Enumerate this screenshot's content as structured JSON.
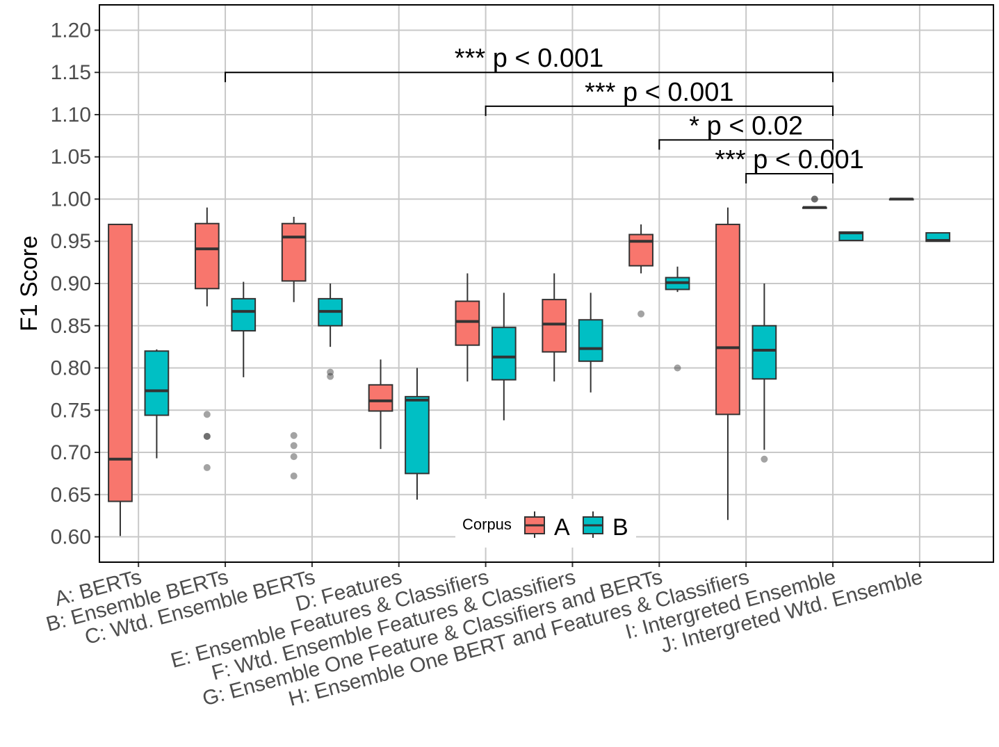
{
  "chart_data": {
    "type": "boxplot",
    "ylabel": "F1 Score",
    "ylim": [
      0.57,
      1.23
    ],
    "yticks": [
      "0.60",
      "0.65",
      "0.70",
      "0.75",
      "0.80",
      "0.85",
      "0.90",
      "0.95",
      "1.00",
      "1.05",
      "1.10",
      "1.15",
      "1.20"
    ],
    "grid": true,
    "categories": [
      "A: BERTs",
      "B: Ensemble BERTs",
      "C: Wtd. Ensemble BERTs",
      "D: Features",
      "E: Ensemble Features & Classifiers",
      "F: Wtd. Ensemble Features & Classifiers",
      "G: Ensemble One Feature & Classifiers and BERTs",
      "H: Ensemble One BERT and Features & Classifiers",
      "I: Intergreted Ensemble",
      "J: Intergreted Wtd. Ensemble"
    ],
    "legend": {
      "title": "Corpus",
      "placement": "bottom-center"
    },
    "series": [
      {
        "name": "A",
        "color": "#F8766D",
        "boxes": [
          {
            "q1": 0.642,
            "median": 0.692,
            "q3": 0.97,
            "low": 0.601,
            "high": 0.97,
            "outliers": []
          },
          {
            "q1": 0.894,
            "median": 0.941,
            "q3": 0.971,
            "low": 0.873,
            "high": 0.99,
            "outliers": [
              0.745,
              0.719,
              0.719,
              0.682
            ]
          },
          {
            "q1": 0.903,
            "median": 0.955,
            "q3": 0.971,
            "low": 0.878,
            "high": 0.979,
            "outliers": [
              0.72,
              0.708,
              0.695,
              0.672
            ]
          },
          {
            "q1": 0.749,
            "median": 0.761,
            "q3": 0.78,
            "low": 0.704,
            "high": 0.81,
            "outliers": []
          },
          {
            "q1": 0.827,
            "median": 0.855,
            "q3": 0.879,
            "low": 0.784,
            "high": 0.912,
            "outliers": []
          },
          {
            "q1": 0.819,
            "median": 0.852,
            "q3": 0.881,
            "low": 0.784,
            "high": 0.912,
            "outliers": []
          },
          {
            "q1": 0.921,
            "median": 0.95,
            "q3": 0.958,
            "low": 0.912,
            "high": 0.97,
            "outliers": [
              0.864
            ]
          },
          {
            "q1": 0.745,
            "median": 0.824,
            "q3": 0.97,
            "low": 0.62,
            "high": 0.99,
            "outliers": []
          },
          {
            "q1": 0.99,
            "median": 0.99,
            "q3": 0.99,
            "low": 0.99,
            "high": 0.99,
            "outliers": [
              1.0,
              1.0
            ]
          },
          {
            "q1": 1.0,
            "median": 1.0,
            "q3": 1.0,
            "low": 1.0,
            "high": 1.0,
            "outliers": []
          }
        ]
      },
      {
        "name": "B",
        "color": "#00BFC4",
        "boxes": [
          {
            "q1": 0.744,
            "median": 0.773,
            "q3": 0.82,
            "low": 0.693,
            "high": 0.822,
            "outliers": []
          },
          {
            "q1": 0.844,
            "median": 0.867,
            "q3": 0.882,
            "low": 0.789,
            "high": 0.902,
            "outliers": []
          },
          {
            "q1": 0.85,
            "median": 0.867,
            "q3": 0.882,
            "low": 0.825,
            "high": 0.9,
            "outliers": [
              0.795,
              0.79
            ]
          },
          {
            "q1": 0.675,
            "median": 0.762,
            "q3": 0.766,
            "low": 0.644,
            "high": 0.8,
            "outliers": []
          },
          {
            "q1": 0.786,
            "median": 0.813,
            "q3": 0.848,
            "low": 0.738,
            "high": 0.889,
            "outliers": []
          },
          {
            "q1": 0.808,
            "median": 0.823,
            "q3": 0.857,
            "low": 0.771,
            "high": 0.889,
            "outliers": []
          },
          {
            "q1": 0.893,
            "median": 0.901,
            "q3": 0.907,
            "low": 0.89,
            "high": 0.92,
            "outliers": [
              0.8
            ]
          },
          {
            "q1": 0.787,
            "median": 0.821,
            "q3": 0.85,
            "low": 0.703,
            "high": 0.9,
            "outliers": [
              0.692
            ]
          },
          {
            "q1": 0.951,
            "median": 0.96,
            "q3": 0.961,
            "low": 0.951,
            "high": 0.961,
            "outliers": []
          },
          {
            "q1": 0.95,
            "median": 0.951,
            "q3": 0.96,
            "low": 0.95,
            "high": 0.96,
            "outliers": []
          }
        ]
      }
    ],
    "annotations": [
      {
        "from": "B: Ensemble BERTs",
        "to": "I: Intergreted Ensemble",
        "y": 1.15,
        "label": "*** p < 0.001"
      },
      {
        "from": "E: Ensemble Features & Classifiers",
        "to": "I: Intergreted Ensemble",
        "y": 1.11,
        "label": "*** p < 0.001"
      },
      {
        "from": "G: Ensemble One Feature & Classifiers and BERTs",
        "to": "I: Intergreted Ensemble",
        "y": 1.07,
        "label": "* p < 0.02"
      },
      {
        "from": "H: Ensemble One BERT and Features & Classifiers",
        "to": "I: Intergreted Ensemble",
        "y": 1.03,
        "label": "*** p < 0.001"
      }
    ]
  }
}
